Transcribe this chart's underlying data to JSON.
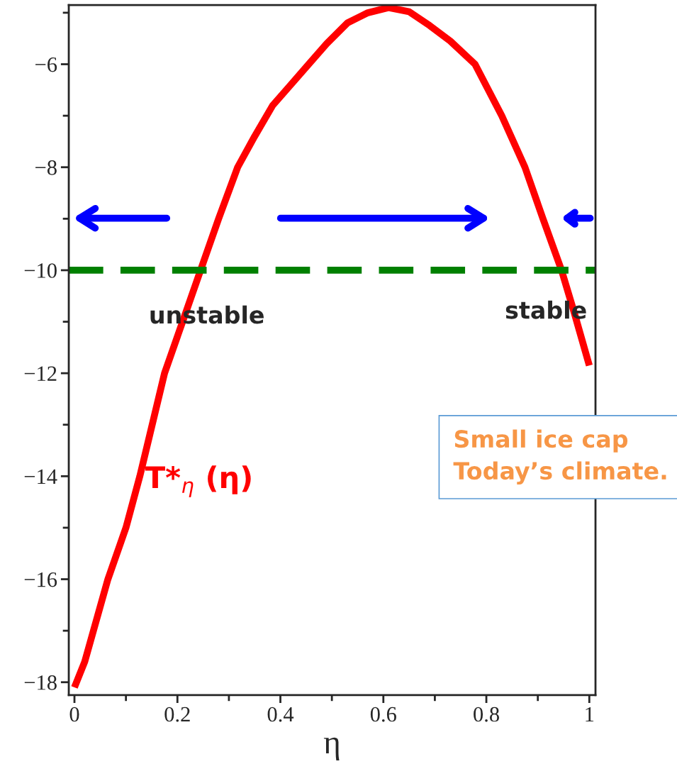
{
  "chart_data": {
    "type": "line",
    "xlabel": "η",
    "x": [
      0,
      0.02,
      0.065,
      0.1,
      0.127,
      0.175,
      0.21,
      0.245,
      0.28,
      0.317,
      0.35,
      0.385,
      0.42,
      0.455,
      0.49,
      0.53,
      0.57,
      0.61,
      0.65,
      0.69,
      0.73,
      0.778,
      0.83,
      0.875,
      0.91,
      0.946,
      0.97,
      1.0
    ],
    "series": [
      {
        "name": "T*$_{η}$ (η)",
        "color": "#ff0000",
        "values": [
          -18.1,
          -17.6,
          -16,
          -15,
          -14,
          -12,
          -11,
          -10,
          -9,
          -8,
          -7.4,
          -6.8,
          -6.4,
          -6,
          -5.6,
          -5.2,
          -5.0,
          -4.9,
          -4.98,
          -5.25,
          -5.55,
          -6,
          -7.0,
          -8,
          -9,
          -10,
          -10.8,
          -11.85
        ]
      }
    ],
    "xlim": [
      -0.011,
      1.012
    ],
    "ylim": [
      -18.25,
      -4.85
    ],
    "xticks": [
      0,
      0.2,
      0.4,
      0.6,
      0.8,
      1
    ],
    "yticks": [
      {
        "value": -18,
        "label": "−18"
      },
      {
        "value": -16,
        "label": "−16"
      },
      {
        "value": -14,
        "label": "−14"
      },
      {
        "value": -12,
        "label": "−12"
      },
      {
        "value": -10,
        "label": "−10"
      },
      {
        "value": -8,
        "label": "−8"
      },
      {
        "value": -6,
        "label": "−6"
      }
    ],
    "ref_lines": [
      {
        "axis": "y",
        "value": -10,
        "color": "#008000",
        "line_style": "dashed"
      }
    ],
    "annotations": [
      "unstable",
      "stable",
      "Small ice cap\nToday’s climate."
    ],
    "grid": false,
    "legend": false
  }
}
